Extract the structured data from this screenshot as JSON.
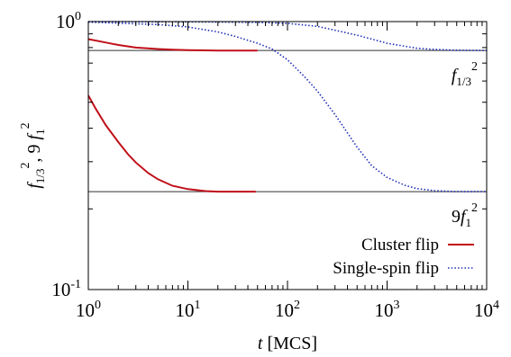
{
  "chart_data": {
    "type": "line",
    "title": "",
    "x_scale": "log",
    "y_scale": "log",
    "xlim": [
      1,
      10000
    ],
    "ylim": [
      0.1,
      1
    ],
    "xlabel": {
      "var": "t",
      "unit": "[MCS]"
    },
    "ylabel": {
      "f1": "f",
      "f1_sub": "1/3",
      "f1_sup": "2",
      "sep": ",",
      "f2_coef": "9",
      "f2": "f",
      "f2_sub": "1",
      "f2_sup": "2"
    },
    "x_ticks": [
      {
        "value": 1,
        "base": "10",
        "exp": "0"
      },
      {
        "value": 10,
        "base": "10",
        "exp": "1"
      },
      {
        "value": 100,
        "base": "10",
        "exp": "2"
      },
      {
        "value": 1000,
        "base": "10",
        "exp": "3"
      },
      {
        "value": 10000,
        "base": "10",
        "exp": "4"
      }
    ],
    "y_ticks": [
      {
        "value": 0.1,
        "base": "10",
        "exp": "-1"
      },
      {
        "value": 1,
        "base": "10",
        "exp": "0"
      }
    ],
    "reference_lines": [
      {
        "y": 0.78,
        "label": {
          "coef": "",
          "var": "f",
          "sub": "1/3",
          "sup": "2"
        }
      },
      {
        "y": 0.232,
        "label": {
          "coef": "9",
          "var": "f",
          "sub": "1",
          "sup": "2"
        }
      }
    ],
    "series": [
      {
        "name": "Cluster flip",
        "color": "#c0101a",
        "style": "solid",
        "segments": [
          {
            "x": [
              1,
              1.5,
              2,
              3,
              5,
              7,
              10,
              15,
              20,
              30,
              50
            ],
            "y": [
              0.86,
              0.835,
              0.818,
              0.8,
              0.79,
              0.785,
              0.782,
              0.781,
              0.78,
              0.78,
              0.78
            ]
          },
          {
            "x": [
              1,
              1.2,
              1.5,
              2,
              2.5,
              3,
              4,
              5,
              7,
              10,
              15,
              20,
              30,
              48
            ],
            "y": [
              0.53,
              0.47,
              0.41,
              0.355,
              0.32,
              0.298,
              0.272,
              0.258,
              0.244,
              0.237,
              0.233,
              0.232,
              0.232,
              0.232
            ]
          }
        ]
      },
      {
        "name": "Single-spin flip",
        "color": "#1f2fb8",
        "style": "dotted",
        "segments": [
          {
            "x": [
              1,
              10,
              50,
              100,
              200,
              500,
              1000,
              2000,
              3000,
              5000,
              10000
            ],
            "y": [
              1.0,
              0.998,
              0.993,
              0.985,
              0.96,
              0.89,
              0.83,
              0.795,
              0.787,
              0.782,
              0.78
            ]
          },
          {
            "x": [
              1,
              5,
              10,
              20,
              30,
              50,
              70,
              100,
              150,
              200,
              300,
              500,
              700,
              1000,
              1500,
              2000,
              3000,
              5000,
              10000
            ],
            "y": [
              0.995,
              0.975,
              0.955,
              0.915,
              0.88,
              0.83,
              0.79,
              0.72,
              0.62,
              0.55,
              0.45,
              0.34,
              0.29,
              0.262,
              0.245,
              0.238,
              0.234,
              0.232,
              0.232
            ]
          }
        ]
      }
    ],
    "legend": {
      "position": "bottom-right"
    },
    "grid": false
  }
}
